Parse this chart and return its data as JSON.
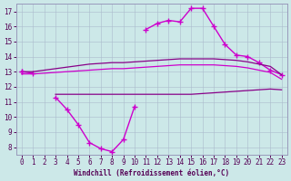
{
  "x": [
    0,
    1,
    2,
    3,
    4,
    5,
    6,
    7,
    8,
    9,
    10,
    11,
    12,
    13,
    14,
    15,
    16,
    17,
    18,
    19,
    20,
    21,
    22,
    23
  ],
  "curve_top": [
    13.0,
    12.9,
    null,
    null,
    null,
    null,
    null,
    null,
    null,
    null,
    null,
    15.8,
    16.2,
    16.4,
    16.3,
    17.2,
    17.2,
    16.0,
    14.8,
    14.1,
    14.0,
    13.6,
    13.1,
    12.8
  ],
  "curve_upper_flat": [
    13.0,
    13.0,
    13.1,
    13.2,
    13.3,
    13.4,
    13.5,
    13.55,
    13.6,
    13.6,
    13.65,
    13.7,
    13.75,
    13.8,
    13.85,
    13.85,
    13.85,
    13.85,
    13.8,
    13.75,
    13.65,
    13.5,
    13.35,
    12.8
  ],
  "curve_lower_flat": [
    12.85,
    12.85,
    12.9,
    12.95,
    13.0,
    13.05,
    13.1,
    13.15,
    13.2,
    13.2,
    13.25,
    13.3,
    13.35,
    13.4,
    13.45,
    13.45,
    13.45,
    13.45,
    13.4,
    13.35,
    13.25,
    13.1,
    12.95,
    12.5
  ],
  "curve_bottom_flat": [
    null,
    null,
    null,
    11.5,
    11.5,
    11.5,
    11.5,
    11.5,
    11.5,
    11.5,
    11.5,
    11.5,
    11.5,
    11.5,
    11.5,
    11.5,
    11.55,
    11.6,
    11.65,
    11.7,
    11.75,
    11.8,
    11.85,
    11.8
  ],
  "curve_dip": [
    13.0,
    null,
    null,
    11.3,
    10.5,
    9.5,
    8.3,
    7.9,
    7.7,
    8.5,
    10.7,
    null,
    null,
    null,
    null,
    null,
    null,
    null,
    null,
    null,
    null,
    null,
    null,
    null
  ],
  "line_color_bright": "#cc00cc",
  "line_color_dark": "#880088",
  "bg_color": "#cce8e8",
  "grid_color": "#aabbcc",
  "xlabel": "Windchill (Refroidissement éolien,°C)",
  "xlim": [
    -0.5,
    23.5
  ],
  "ylim": [
    7.5,
    17.5
  ],
  "yticks": [
    8,
    9,
    10,
    11,
    12,
    13,
    14,
    15,
    16,
    17
  ],
  "xticks": [
    0,
    1,
    2,
    3,
    4,
    5,
    6,
    7,
    8,
    9,
    10,
    11,
    12,
    13,
    14,
    15,
    16,
    17,
    18,
    19,
    20,
    21,
    22,
    23
  ],
  "figsize": [
    3.2,
    2.0
  ],
  "dpi": 100
}
